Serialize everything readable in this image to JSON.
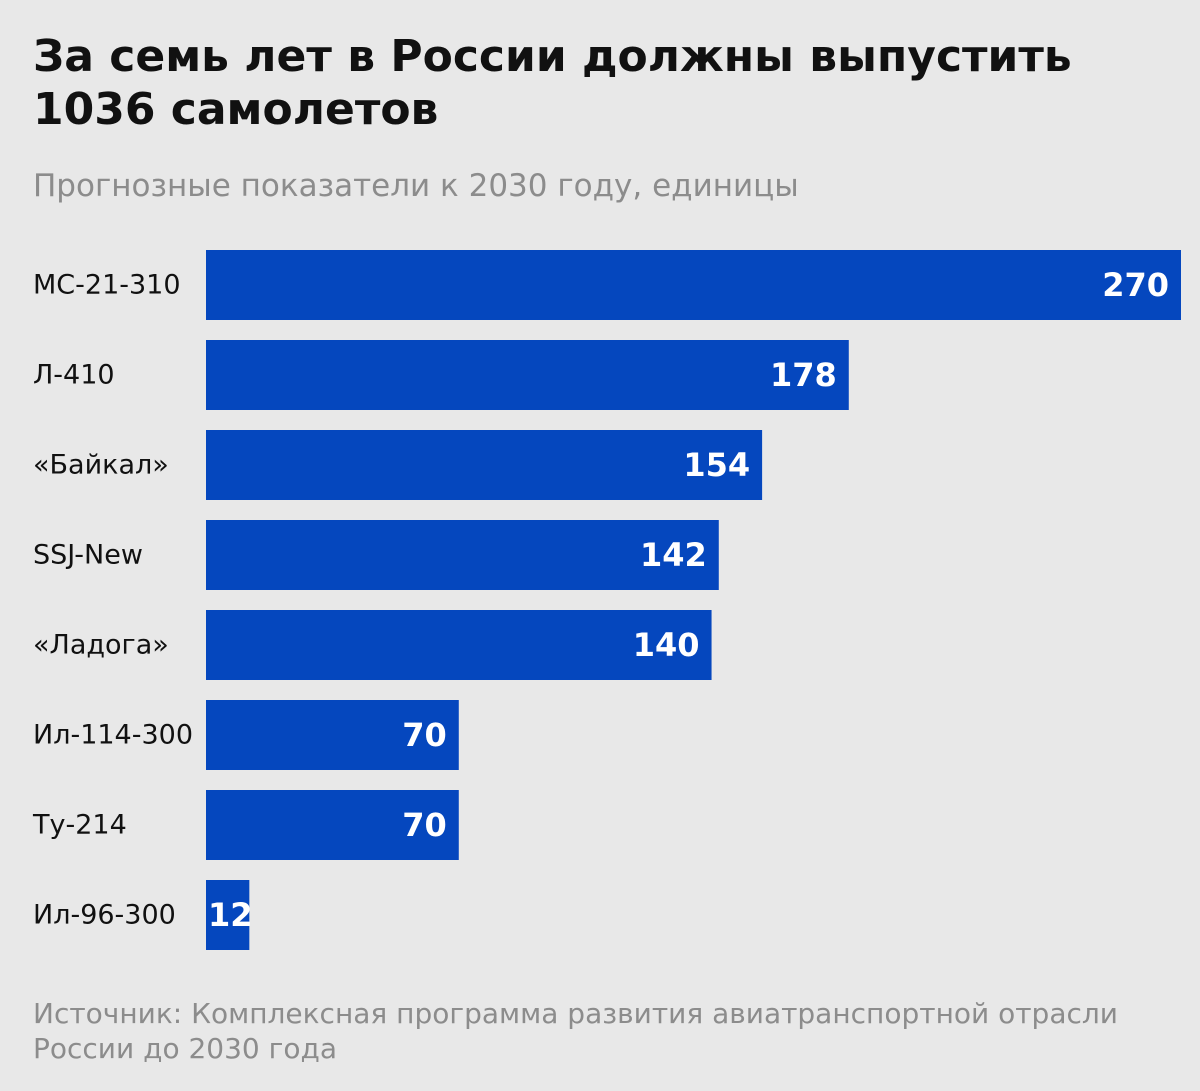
{
  "header": {
    "title": "За семь лет в России должны выпустить 1036 самолетов",
    "subtitle": "Прогнозные показатели к 2030 году, единицы"
  },
  "footer": {
    "source": "Источник: Комплексная программа развития авиатранспортной отрасли России до 2030 года"
  },
  "colors": {
    "bar": "#0547be",
    "bar_label": "#ffffff",
    "category_label": "#111111",
    "background": "#e8e8e8"
  },
  "chart_data": {
    "type": "bar",
    "orientation": "horizontal",
    "title": "За семь лет в России должны выпустить 1036 самолетов",
    "subtitle": "Прогнозные показатели к 2030 году, единицы",
    "xlabel": "",
    "ylabel": "",
    "categories": [
      "МС-21-310",
      "Л-410",
      "«Байкал»",
      "SSJ-New",
      "«Ладога»",
      "Ил-114-300",
      "Ту-214",
      "Ил-96-300"
    ],
    "values": [
      270,
      178,
      154,
      142,
      140,
      70,
      70,
      12
    ],
    "xlim": [
      0,
      270
    ],
    "grid": false,
    "legend": "none",
    "data_labels": "inside-end"
  }
}
